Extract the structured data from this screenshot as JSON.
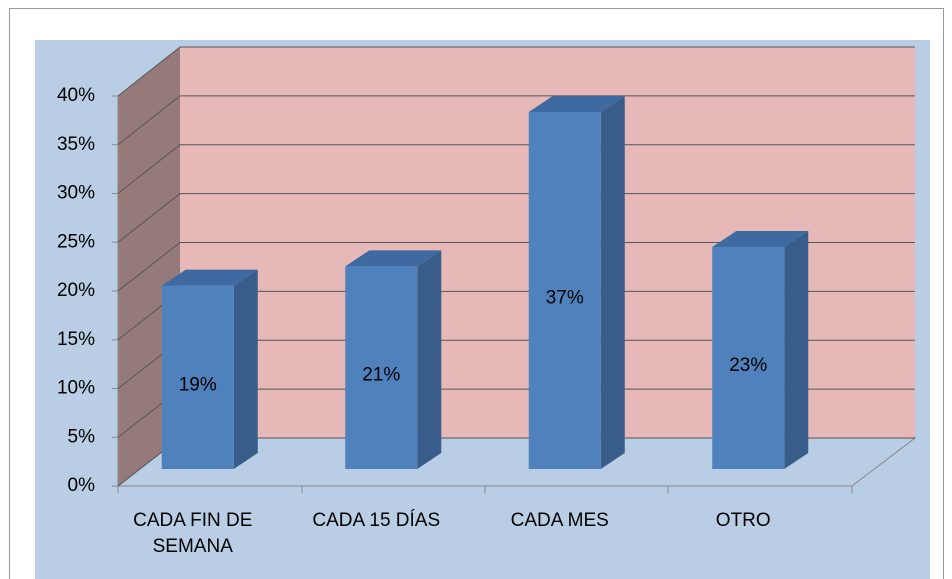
{
  "chart_data": {
    "type": "bar3d",
    "categories": [
      "CADA FIN DE SEMANA",
      "CADA 15 DÍAS",
      "CADA MES",
      "OTRO"
    ],
    "values": [
      19,
      21,
      37,
      23
    ],
    "value_labels": [
      "19%",
      "21%",
      "37%",
      "23%"
    ],
    "color": "#4f81bd",
    "ylim": [
      0,
      40
    ],
    "yticks": [
      {
        "value": 0,
        "label": "0%"
      },
      {
        "value": 5,
        "label": "5%"
      },
      {
        "value": 10,
        "label": "10%"
      },
      {
        "value": 15,
        "label": "15%"
      },
      {
        "value": 20,
        "label": "20%"
      },
      {
        "value": 25,
        "label": "25%"
      },
      {
        "value": 30,
        "label": "30%"
      },
      {
        "value": 35,
        "label": "35%"
      },
      {
        "value": 40,
        "label": "40%"
      }
    ],
    "grid": true
  }
}
